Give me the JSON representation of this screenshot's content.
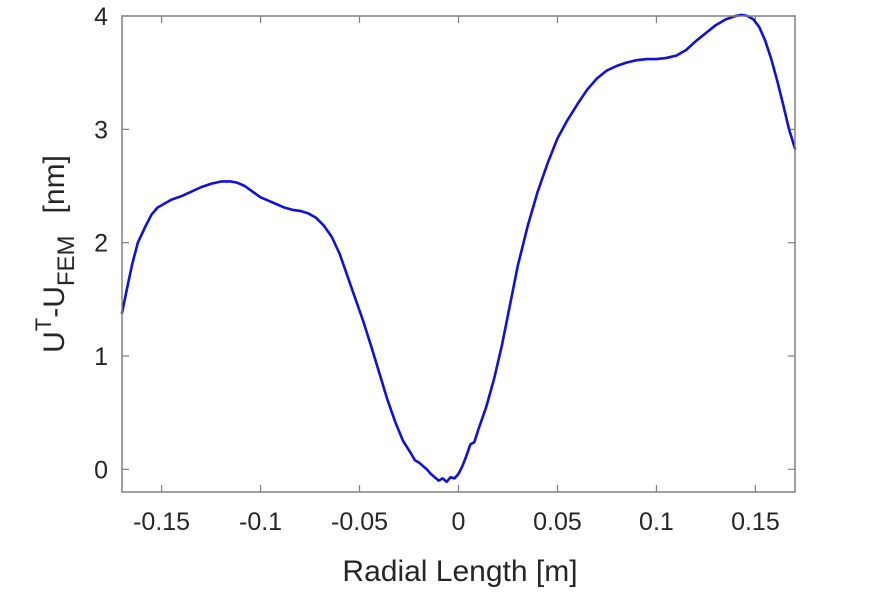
{
  "chart_data": {
    "type": "line",
    "title": "",
    "xlabel": "Radial Length [m]",
    "ylabel": {
      "base": "U",
      "superscript": "T",
      "middle": "-U",
      "subscript": "FEM",
      "unit": "[nm]"
    },
    "xlim": [
      -0.17,
      0.17
    ],
    "ylim": [
      -0.2,
      4.0
    ],
    "xticks": [
      -0.15,
      -0.1,
      -0.05,
      0,
      0.05,
      0.1,
      0.15
    ],
    "xtick_labels": [
      "-0.15",
      "-0.1",
      "-0.05",
      "0",
      "0.05",
      "0.1",
      "0.15"
    ],
    "yticks": [
      0,
      1,
      2,
      3,
      4
    ],
    "ytick_labels": [
      "0",
      "1",
      "2",
      "3",
      "4"
    ],
    "grid": false,
    "legend": "none",
    "series": [
      {
        "color": "#1010d8",
        "x": [
          -0.17,
          -0.168,
          -0.165,
          -0.162,
          -0.158,
          -0.155,
          -0.152,
          -0.148,
          -0.145,
          -0.14,
          -0.135,
          -0.13,
          -0.125,
          -0.12,
          -0.115,
          -0.112,
          -0.108,
          -0.104,
          -0.1,
          -0.096,
          -0.092,
          -0.088,
          -0.084,
          -0.08,
          -0.076,
          -0.072,
          -0.068,
          -0.064,
          -0.06,
          -0.056,
          -0.052,
          -0.048,
          -0.044,
          -0.04,
          -0.036,
          -0.032,
          -0.028,
          -0.024,
          -0.022,
          -0.02,
          -0.018,
          -0.016,
          -0.014,
          -0.012,
          -0.01,
          -0.008,
          -0.006,
          -0.004,
          -0.002,
          0.0,
          0.002,
          0.004,
          0.006,
          0.008,
          0.01,
          0.014,
          0.018,
          0.022,
          0.026,
          0.03,
          0.035,
          0.04,
          0.045,
          0.05,
          0.055,
          0.06,
          0.065,
          0.07,
          0.075,
          0.08,
          0.085,
          0.09,
          0.095,
          0.1,
          0.105,
          0.11,
          0.115,
          0.12,
          0.125,
          0.13,
          0.135,
          0.14,
          0.143,
          0.146,
          0.149,
          0.152,
          0.155,
          0.158,
          0.161,
          0.164,
          0.167,
          0.17
        ],
        "y": [
          1.38,
          1.55,
          1.8,
          2.0,
          2.15,
          2.25,
          2.31,
          2.35,
          2.38,
          2.41,
          2.45,
          2.49,
          2.52,
          2.54,
          2.54,
          2.53,
          2.5,
          2.45,
          2.4,
          2.37,
          2.34,
          2.31,
          2.29,
          2.28,
          2.26,
          2.22,
          2.15,
          2.05,
          1.9,
          1.7,
          1.5,
          1.3,
          1.08,
          0.85,
          0.62,
          0.42,
          0.25,
          0.14,
          0.08,
          0.06,
          0.03,
          0.0,
          -0.04,
          -0.07,
          -0.1,
          -0.08,
          -0.11,
          -0.07,
          -0.08,
          -0.04,
          0.03,
          0.12,
          0.22,
          0.24,
          0.35,
          0.55,
          0.8,
          1.1,
          1.45,
          1.8,
          2.15,
          2.45,
          2.7,
          2.92,
          3.08,
          3.22,
          3.35,
          3.45,
          3.52,
          3.56,
          3.59,
          3.61,
          3.62,
          3.62,
          3.63,
          3.65,
          3.7,
          3.78,
          3.85,
          3.92,
          3.97,
          4.0,
          4.01,
          4.0,
          3.97,
          3.9,
          3.78,
          3.62,
          3.43,
          3.22,
          3.0,
          2.83
        ]
      }
    ]
  }
}
